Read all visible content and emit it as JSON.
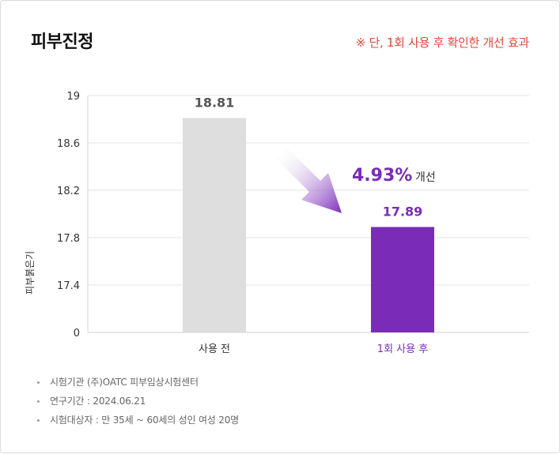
{
  "title": "피부진정",
  "note": "※ 단, 1회 사용 후 확인한 개선 효과",
  "colors": {
    "before": "#dedede",
    "after": "#7a2cb8",
    "note": "#e8453c",
    "grid": "#e3e3e3"
  },
  "chart_data": {
    "type": "bar",
    "ylabel": "피부붉은기",
    "ytick_labels": [
      "0",
      "17.4",
      "17.8",
      "18.2",
      "18.6",
      "19"
    ],
    "categories": [
      "사용 전",
      "1회 사용 후"
    ],
    "values": [
      18.81,
      17.89
    ],
    "value_labels": [
      "18.81",
      "17.89"
    ],
    "ylim": [
      17.0,
      19.0
    ],
    "axis_break": "0 shown at bottom; scale from 17.0 to 19.0",
    "grid": true,
    "annotation": {
      "value": "4.93%",
      "text": "개선",
      "arrow": "down-right"
    }
  },
  "footnotes": [
    "시험기관 (주)OATC 피부임상시험센터",
    "연구기간 : 2024.06.21",
    "시험대상자 : 만 35세 ~ 60세의 성인 여성 20명"
  ]
}
